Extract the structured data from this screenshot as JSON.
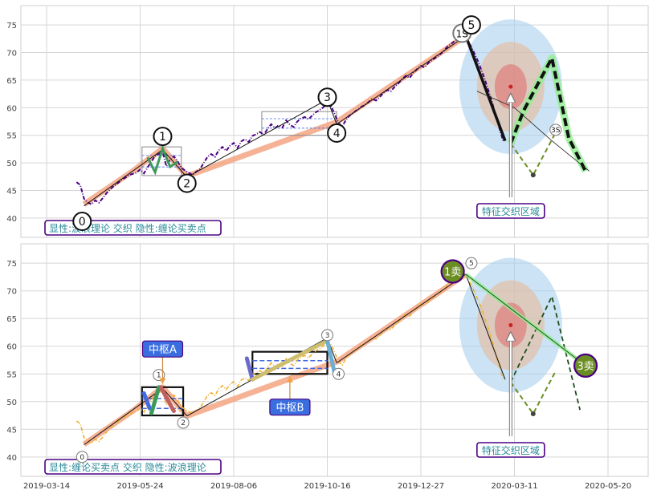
{
  "chart_data": [
    {
      "panel": "top",
      "type": "line",
      "ylim": [
        36.5,
        78.5
      ],
      "yticks": [
        40,
        45,
        50,
        55,
        60,
        65,
        70,
        75
      ],
      "grid": true,
      "price": [
        [
          16,
          46.5
        ],
        [
          18,
          46
        ],
        [
          20,
          43.5
        ],
        [
          22,
          42.8
        ],
        [
          24,
          42.5
        ],
        [
          26,
          43.2
        ],
        [
          28,
          42.8
        ],
        [
          30,
          43.6
        ],
        [
          32,
          44.5
        ],
        [
          34,
          45.2
        ],
        [
          36,
          45.8
        ],
        [
          38,
          46.3
        ],
        [
          40,
          46.9
        ],
        [
          42,
          47.3
        ],
        [
          44,
          47.8
        ],
        [
          46,
          48.0
        ],
        [
          48,
          48.2
        ],
        [
          50,
          48.8
        ],
        [
          52,
          48.1
        ],
        [
          54,
          49.2
        ],
        [
          56,
          50.2
        ],
        [
          58,
          51.3
        ],
        [
          60,
          51.6
        ],
        [
          62,
          52.0
        ],
        [
          64,
          49.4
        ],
        [
          66,
          50.6
        ],
        [
          68,
          51.2
        ],
        [
          70,
          50.3
        ],
        [
          72,
          49.1
        ],
        [
          74,
          48.6
        ],
        [
          76,
          48.2
        ],
        [
          78,
          47.8
        ],
        [
          80,
          48.4
        ],
        [
          82,
          48.9
        ],
        [
          84,
          50.0
        ],
        [
          86,
          51.1
        ],
        [
          88,
          51.6
        ],
        [
          90,
          51.1
        ],
        [
          92,
          52.3
        ],
        [
          94,
          52.9
        ],
        [
          96,
          52.2
        ],
        [
          98,
          53.1
        ],
        [
          100,
          53.6
        ],
        [
          102,
          52.7
        ],
        [
          104,
          53.9
        ],
        [
          106,
          54.3
        ],
        [
          108,
          53.8
        ],
        [
          110,
          54.9
        ],
        [
          112,
          55.2
        ],
        [
          114,
          55.6
        ],
        [
          116,
          55.1
        ],
        [
          118,
          56.1
        ],
        [
          120,
          57.0
        ],
        [
          122,
          56.3
        ],
        [
          124,
          56.8
        ],
        [
          126,
          56.4
        ],
        [
          128,
          57.7
        ],
        [
          130,
          56.9
        ],
        [
          132,
          56.5
        ],
        [
          134,
          57.5
        ],
        [
          136,
          58.1
        ],
        [
          138,
          58.3
        ],
        [
          140,
          57.9
        ],
        [
          142,
          58.6
        ],
        [
          144,
          59.2
        ],
        [
          146,
          59.6
        ],
        [
          148,
          60.1
        ],
        [
          150,
          61.0
        ],
        [
          152,
          60.3
        ],
        [
          154,
          58.8
        ],
        [
          156,
          57.2
        ],
        [
          158,
          56.6
        ],
        [
          160,
          57.8
        ],
        [
          162,
          58.6
        ],
        [
          164,
          59.1
        ],
        [
          166,
          59.6
        ],
        [
          168,
          60.1
        ],
        [
          170,
          60.5
        ],
        [
          172,
          61.0
        ],
        [
          174,
          61.6
        ],
        [
          176,
          61.3
        ],
        [
          178,
          61.9
        ],
        [
          180,
          62.7
        ],
        [
          182,
          63.2
        ],
        [
          184,
          63.0
        ],
        [
          186,
          63.8
        ],
        [
          188,
          64.4
        ],
        [
          190,
          65.2
        ],
        [
          192,
          65.8
        ],
        [
          194,
          65.4
        ],
        [
          196,
          66.3
        ],
        [
          198,
          67.0
        ],
        [
          200,
          67.6
        ],
        [
          202,
          67.3
        ],
        [
          204,
          68.1
        ],
        [
          206,
          68.6
        ],
        [
          208,
          69.1
        ],
        [
          210,
          69.6
        ],
        [
          212,
          70.2
        ],
        [
          214,
          71.0
        ],
        [
          216,
          71.5
        ],
        [
          218,
          72.1
        ],
        [
          220,
          72.5
        ],
        [
          222,
          72.9
        ],
        [
          224,
          72.6
        ],
        [
          226,
          71.6
        ],
        [
          228,
          70.3
        ],
        [
          230,
          68.8
        ],
        [
          232,
          67.1
        ],
        [
          234,
          65.3
        ],
        [
          236,
          63.2
        ],
        [
          238,
          61.1
        ],
        [
          240,
          58.6
        ],
        [
          242,
          56.2
        ],
        [
          244,
          54.0
        ]
      ],
      "stroke_segments": [
        [
          [
            20,
            42.5
          ],
          [
            46,
            48.5
          ],
          [
            62,
            52.6
          ],
          [
            75,
            47.6
          ],
          [
            155,
            57.4
          ],
          [
            224,
            73.0
          ]
        ]
      ],
      "black_lines": [
        [
          [
            20,
            42.2
          ],
          [
            62,
            52.4
          ]
        ],
        [
          [
            62,
            52.4
          ],
          [
            75,
            47.4
          ]
        ],
        [
          [
            75,
            47.4
          ],
          [
            150,
            61.5
          ]
        ],
        [
          [
            150,
            61.5
          ],
          [
            155,
            57.0
          ]
        ],
        [
          [
            155,
            57.0
          ],
          [
            224,
            73.0
          ]
        ],
        [
          [
            224,
            73.0
          ],
          [
            245,
            54.0
          ]
        ]
      ],
      "small_bi": [
        [
          [
            54,
            51.0
          ],
          [
            58,
            48.3
          ],
          [
            62,
            52.6
          ],
          [
            66,
            49.3
          ],
          [
            70,
            50.2
          ]
        ]
      ],
      "boxes": [
        [
          51,
          47.7,
          72,
          52.9
        ],
        [
          115,
          55.0,
          155,
          59.3
        ]
      ],
      "forecast_green": [
        [
          [
            248,
            53.5
          ],
          [
            255,
            59.5
          ],
          [
            262,
            64.0
          ],
          [
            270,
            69.0
          ],
          [
            279,
            54.5
          ],
          [
            288,
            48.5
          ]
        ]
      ],
      "forecast_dash": [
        [
          [
            248,
            53.5
          ],
          [
            255,
            59.5
          ],
          [
            262,
            64.0
          ],
          [
            270,
            69.0
          ],
          [
            279,
            54.5
          ],
          [
            288,
            48.5
          ]
        ]
      ],
      "small_dashed": [
        [
          [
            248,
            53.5
          ],
          [
            260,
            47.8
          ],
          [
            272,
            55.5
          ]
        ]
      ],
      "thin_arc": [
        [
          [
            230,
            63.0
          ],
          [
            250,
            60.0
          ],
          [
            270,
            54.0
          ],
          [
            290,
            48.5
          ]
        ]
      ],
      "wave_points": [
        {
          "label": "0",
          "x": 19,
          "y": 39.4
        },
        {
          "label": "1",
          "x": 62,
          "y": 54.8
        },
        {
          "label": "2",
          "x": 75,
          "y": 46.3
        },
        {
          "label": "3",
          "x": 150,
          "y": 61.9
        },
        {
          "label": "4",
          "x": 155,
          "y": 55.4
        },
        {
          "label": "1S",
          "x": 222,
          "y": 73.5
        },
        {
          "label": "5",
          "x": 227,
          "y": 75.0
        },
        {
          "label": "3S",
          "x": 272,
          "y": 56.0
        }
      ],
      "zone_center": [
        248,
        63.8
      ],
      "zone_label": "特征交织区域",
      "caption": "显性:波浪理论 交织 隐性:缠论买卖点"
    },
    {
      "panel": "bottom",
      "type": "line",
      "ylim": [
        36.5,
        78.5
      ],
      "yticks": [
        40,
        45,
        50,
        55,
        60,
        65,
        70,
        75
      ],
      "grid": true,
      "xticks": [
        "2019-03-14",
        "2019-05-24",
        "2019-08-06",
        "2019-10-16",
        "2019-12-27",
        "2020-03-11",
        "2020-05-20"
      ],
      "xtick_positions": [
        0,
        50,
        100,
        150,
        200,
        250,
        300
      ],
      "stroke_segments": [
        [
          [
            20,
            42.3
          ],
          [
            46,
            48.3
          ],
          [
            62,
            52.6
          ],
          [
            75,
            47.4
          ],
          [
            155,
            57.2
          ],
          [
            224,
            73.0
          ]
        ]
      ],
      "black_lines": [
        [
          [
            20,
            42.2
          ],
          [
            62,
            52.4
          ]
        ],
        [
          [
            62,
            52.4
          ],
          [
            75,
            47.4
          ]
        ],
        [
          [
            75,
            47.4
          ],
          [
            150,
            61.5
          ]
        ],
        [
          [
            150,
            61.5
          ],
          [
            155,
            57.0
          ]
        ],
        [
          [
            155,
            57.0
          ],
          [
            224,
            73.0
          ]
        ],
        [
          [
            224,
            73.0
          ],
          [
            245,
            54.0
          ]
        ]
      ],
      "bi_segments": [
        {
          "color": "#4169E1",
          "points": [
            [
              52,
              51.5
            ],
            [
              55,
              48.8
            ]
          ]
        },
        {
          "color": "#3A9A5C",
          "points": [
            [
              56,
              47.9
            ],
            [
              60,
              52.6
            ]
          ]
        },
        {
          "color": "#C06060",
          "points": [
            [
              61,
              52.6
            ],
            [
              68,
              48.3
            ]
          ]
        },
        {
          "color": "#6A6ACD",
          "points": [
            [
              107,
              57.8
            ],
            [
              110,
              54.0
            ]
          ]
        },
        {
          "color": "#CDBE70",
          "points": [
            [
              110,
              54.0
            ],
            [
              150,
              61.0
            ]
          ]
        },
        {
          "color": "#6BAED6",
          "points": [
            [
              150,
              61.0
            ],
            [
              154,
              55.0
            ]
          ]
        }
      ],
      "boxes": [
        [
          51,
          47.5,
          73,
          52.6
        ],
        [
          110,
          55.0,
          150,
          59.0
        ]
      ],
      "forecast_green": [
        [
          [
            248,
            53.5
          ],
          [
            260,
            47.8
          ],
          [
            272,
            55.5
          ]
        ]
      ],
      "forecast_dash": [
        [
          [
            248,
            53.5
          ],
          [
            270,
            69.0
          ],
          [
            285,
            48.5
          ]
        ]
      ],
      "sell_line": [
        [
          224,
          73.0
        ],
        [
          288,
          56.5
        ]
      ],
      "labels": [
        {
          "label": "0",
          "x": 19,
          "y": 40.0
        },
        {
          "label": "1",
          "x": 60,
          "y": 54.8
        },
        {
          "label": "2",
          "x": 73,
          "y": 46.2
        },
        {
          "label": "3",
          "x": 150,
          "y": 62.0
        },
        {
          "label": "4",
          "x": 156,
          "y": 55.0
        },
        {
          "label": "5",
          "x": 227,
          "y": 75.0
        }
      ],
      "sell_points": [
        {
          "label": "1卖",
          "x": 217,
          "y": 73.5
        },
        {
          "label": "3卖",
          "x": 288,
          "y": 56.5
        }
      ],
      "pivot_labels": [
        {
          "label": "中枢A",
          "x": 62,
          "y": 59.5
        },
        {
          "label": "中枢B",
          "x": 130,
          "y": 49.0
        }
      ],
      "zone_center": [
        248,
        63.8
      ],
      "zone_label": "特征交织区域",
      "caption": "显性:缠论买卖点 交织 隐性:波浪理论"
    }
  ]
}
